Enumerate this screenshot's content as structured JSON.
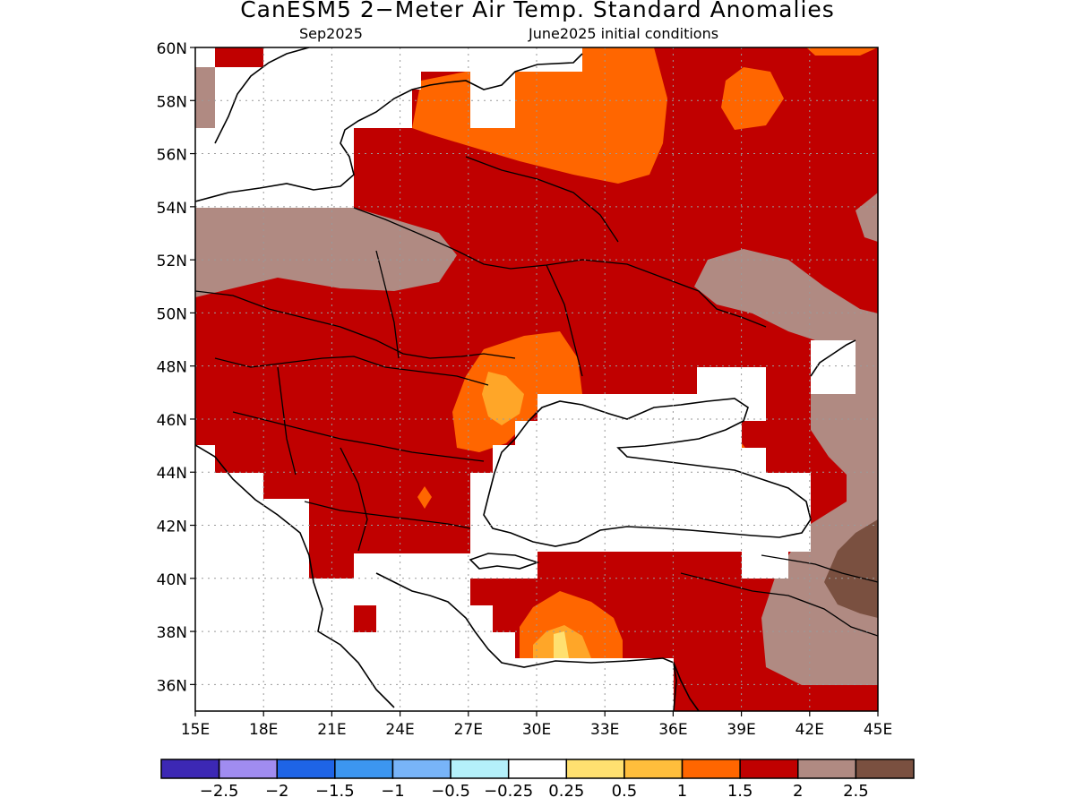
{
  "title": "CanESM5 2−Meter Air Temp. Standard Anomalies",
  "subtitle_left": "Sep2025",
  "subtitle_right": "June2025 initial conditions",
  "map": {
    "lon_range": [
      15,
      45
    ],
    "lat_range": [
      35,
      60
    ],
    "lat_ticks": [
      "60N",
      "58N",
      "56N",
      "54N",
      "52N",
      "50N",
      "48N",
      "46N",
      "44N",
      "42N",
      "40N",
      "38N",
      "36N"
    ],
    "lon_ticks": [
      "15E",
      "18E",
      "21E",
      "24E",
      "27E",
      "30E",
      "33E",
      "36E",
      "39E",
      "42E",
      "45E"
    ],
    "base_fill": "#c00000",
    "region_colors": {
      "gt_2_0": "#b08a82",
      "gt_2_5": "#7a5040",
      "gt_1_5": "#ff6600",
      "gt_1_0": "#ffa628",
      "gt_0_5": "#ffe070",
      "masked": "#ffffff"
    },
    "features": [
      "coastlines",
      "country-borders",
      "Black Sea",
      "Aegean Sea"
    ]
  },
  "colorbar": {
    "colors": [
      "#3c28b4",
      "#a08cf0",
      "#1e64e6",
      "#3c96f0",
      "#78b4f8",
      "#b4f0fa",
      "#ffffff",
      "#ffe070",
      "#ffbe3c",
      "#ff6600",
      "#c00000",
      "#b08a82",
      "#7a5040"
    ],
    "labels": [
      "−2.5",
      "−2",
      "−1.5",
      "−1",
      "−0.5",
      "−0.25",
      "0.25",
      "0.5",
      "1",
      "1.5",
      "2",
      "2.5"
    ]
  }
}
